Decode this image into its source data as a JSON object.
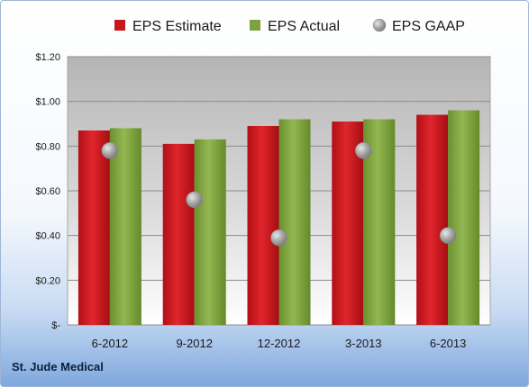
{
  "chart_data": {
    "type": "bar",
    "categories": [
      "6-2012",
      "9-2012",
      "12-2012",
      "3-2013",
      "6-2013"
    ],
    "series": [
      {
        "name": "EPS Estimate",
        "kind": "bar",
        "color": "#c8161d",
        "values": [
          0.87,
          0.81,
          0.89,
          0.91,
          0.94
        ]
      },
      {
        "name": "EPS Actual",
        "kind": "bar",
        "color": "#7da23d",
        "values": [
          0.88,
          0.83,
          0.92,
          0.92,
          0.96
        ]
      },
      {
        "name": "EPS GAAP",
        "kind": "scatter",
        "color": "#a9a9a9",
        "values": [
          0.78,
          0.56,
          0.39,
          0.78,
          0.4
        ]
      }
    ],
    "ylim": [
      0,
      1.2
    ],
    "yticks": [
      {
        "value": 0,
        "label": "$-"
      },
      {
        "value": 0.2,
        "label": "$0.20"
      },
      {
        "value": 0.4,
        "label": "$0.40"
      },
      {
        "value": 0.6,
        "label": "$0.60"
      },
      {
        "value": 0.8,
        "label": "$0.80"
      },
      {
        "value": 1.0,
        "label": "$1.00"
      },
      {
        "value": 1.2,
        "label": "$1.20"
      }
    ],
    "grid": true,
    "legend": "top"
  },
  "footer": {
    "company": "St. Jude Medical"
  }
}
